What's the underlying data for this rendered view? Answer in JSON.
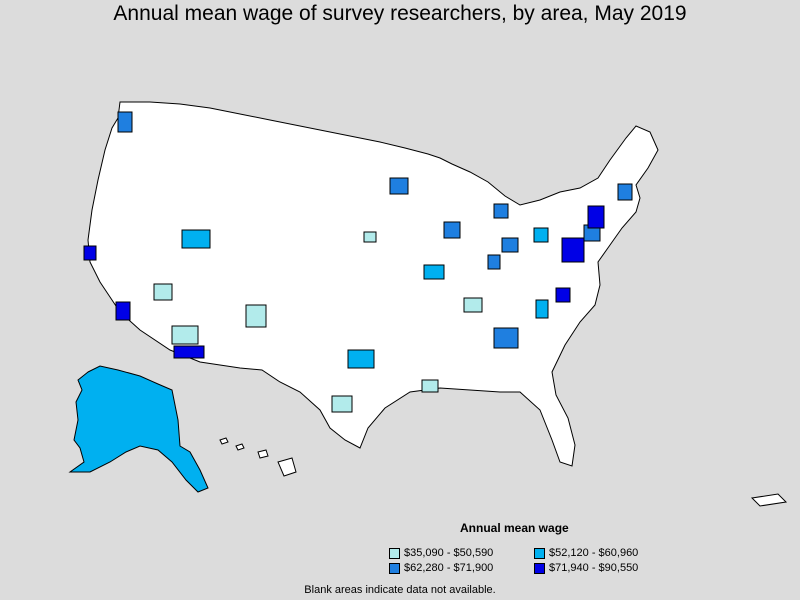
{
  "title": "Annual mean wage of survey researchers, by area, May 2019",
  "legend": {
    "title": "Annual mean wage",
    "items": [
      {
        "label": "$35,090 - $50,590",
        "color": "#b2ebeb"
      },
      {
        "label": "$52,120 - $60,960",
        "color": "#00b0f0"
      },
      {
        "label": "$62,280 - $71,900",
        "color": "#1f7fe0"
      },
      {
        "label": "$71,940 - $90,550",
        "color": "#0000e6"
      }
    ]
  },
  "footnote": "Blank areas indicate data not available.",
  "colors": {
    "background": "#dcdcdc",
    "land": "#ffffff",
    "border": "#000000",
    "tier1": "#b2ebeb",
    "tier2": "#00b0f0",
    "tier3": "#1f7fe0",
    "tier4": "#0000e6"
  }
}
